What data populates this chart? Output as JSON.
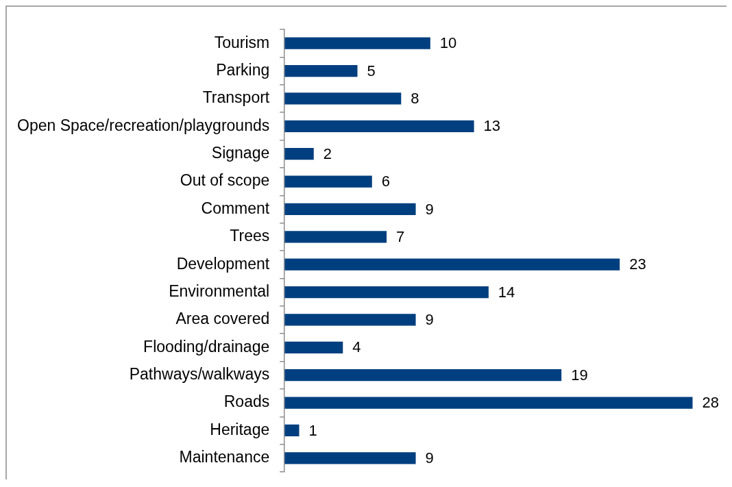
{
  "chart_data": {
    "type": "bar",
    "orientation": "horizontal",
    "categories": [
      "Tourism",
      "Parking",
      "Transport",
      "Open Space/recreation/playgrounds",
      "Signage",
      "Out of scope",
      "Comment",
      "Trees",
      "Development",
      "Environmental",
      "Area covered",
      "Flooding/drainage",
      "Pathways/walkways",
      "Roads",
      "Heritage",
      "Maintenance"
    ],
    "values": [
      10,
      5,
      8,
      13,
      2,
      6,
      9,
      7,
      23,
      14,
      9,
      4,
      19,
      28,
      1,
      9
    ],
    "color": "#003f7f",
    "data_labels": true,
    "legend": false,
    "grid": false,
    "tick_labels": "y"
  }
}
